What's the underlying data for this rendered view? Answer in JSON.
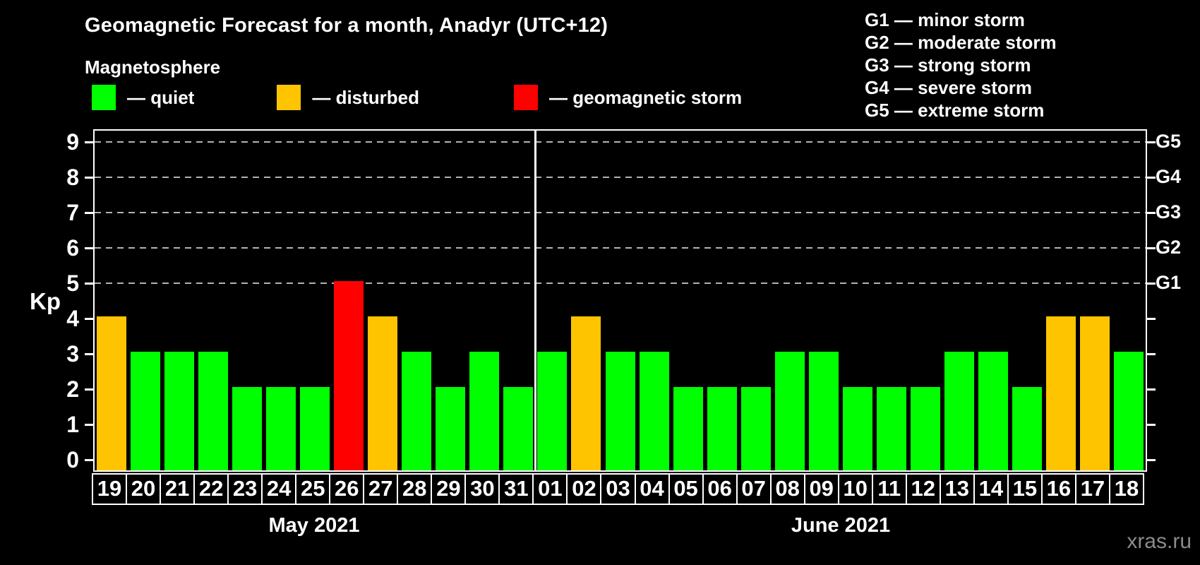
{
  "header": {
    "title": "Geomagnetic Forecast for a month, Anadyr (UTC+12)",
    "subtitle": "Magnetosphere"
  },
  "legend": {
    "items": [
      {
        "name": "quiet",
        "label": "— quiet",
        "color": "#00ff00"
      },
      {
        "name": "disturbed",
        "label": "— disturbed",
        "color": "#ffc400"
      },
      {
        "name": "storm",
        "label": "— geomagnetic storm",
        "color": "#ff0000"
      }
    ]
  },
  "g_scale_legend": {
    "lines": [
      "G1 — minor storm",
      "G2 — moderate storm",
      "G3 — strong storm",
      "G4 — severe storm",
      "G5 — extreme storm"
    ]
  },
  "watermark": "xras.ru",
  "chart_data": {
    "type": "bar",
    "title": "Geomagnetic Forecast for a month, Anadyr (UTC+12)",
    "ylabel": "Kp",
    "xlabel": "",
    "ylim": [
      0,
      9.4
    ],
    "y_ticks": [
      0,
      1,
      2,
      3,
      4,
      5,
      6,
      7,
      8,
      9
    ],
    "grid": "horizontal dashed",
    "gridlines_at_kp": [
      5,
      6,
      7,
      8,
      9
    ],
    "right_axis_labels": [
      {
        "kp": 5,
        "label": "G1"
      },
      {
        "kp": 6,
        "label": "G2"
      },
      {
        "kp": 7,
        "label": "G3"
      },
      {
        "kp": 8,
        "label": "G4"
      },
      {
        "kp": 9,
        "label": "G5"
      }
    ],
    "status_colors": {
      "quiet": "#00ff00",
      "disturbed": "#ffc400",
      "storm": "#ff0000"
    },
    "legend_position": "top-left",
    "months": [
      {
        "label": "May 2021",
        "days": [
          "19",
          "20",
          "21",
          "22",
          "23",
          "24",
          "25",
          "26",
          "27",
          "28",
          "29",
          "30",
          "31"
        ],
        "kp": [
          4,
          3,
          3,
          3,
          2,
          2,
          2,
          5,
          4,
          3,
          2,
          3,
          2
        ],
        "status": [
          "disturbed",
          "quiet",
          "quiet",
          "quiet",
          "quiet",
          "quiet",
          "quiet",
          "storm",
          "disturbed",
          "quiet",
          "quiet",
          "quiet",
          "quiet"
        ]
      },
      {
        "label": "June 2021",
        "days": [
          "01",
          "02",
          "03",
          "04",
          "05",
          "06",
          "07",
          "08",
          "09",
          "10",
          "11",
          "12",
          "13",
          "14",
          "15",
          "16",
          "17",
          "18"
        ],
        "kp": [
          3,
          4,
          3,
          3,
          2,
          2,
          2,
          3,
          3,
          2,
          2,
          2,
          3,
          3,
          2,
          4,
          4,
          3
        ],
        "status": [
          "quiet",
          "disturbed",
          "quiet",
          "quiet",
          "quiet",
          "quiet",
          "quiet",
          "quiet",
          "quiet",
          "quiet",
          "quiet",
          "quiet",
          "quiet",
          "quiet",
          "quiet",
          "disturbed",
          "disturbed",
          "quiet"
        ]
      }
    ]
  }
}
